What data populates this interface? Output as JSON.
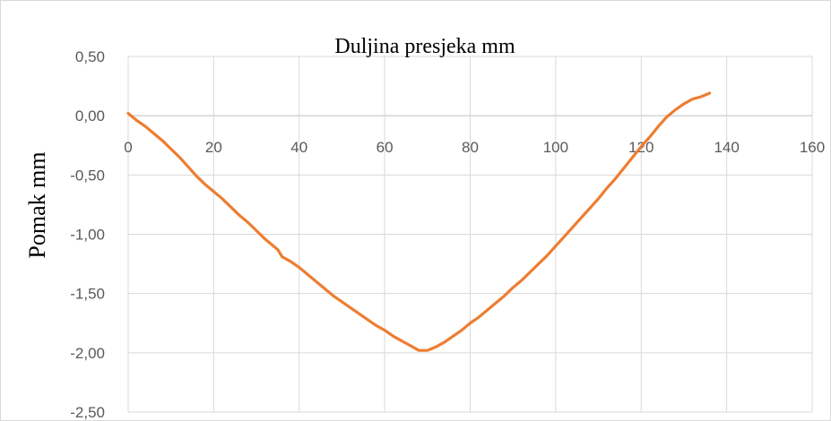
{
  "chart_data": {
    "type": "line",
    "title": "Duljina presjeka  mm",
    "xlabel": "",
    "ylabel": "Pomak  mm",
    "xlim": [
      0,
      160
    ],
    "ylim": [
      -2.5,
      0.5
    ],
    "x_ticks": [
      "0",
      "20",
      "40",
      "60",
      "80",
      "100",
      "120",
      "140",
      "160"
    ],
    "y_ticks": [
      "0,50",
      "0,00",
      "-0,50",
      "-1,00",
      "-1,50",
      "-2,00",
      "-2,50"
    ],
    "grid": true,
    "legend": "none",
    "series": [
      {
        "color": "#ED7D31",
        "x": [
          0,
          2,
          4,
          6,
          8,
          10,
          12,
          14,
          16,
          18,
          20,
          22,
          24,
          26,
          28,
          30,
          32,
          34,
          35,
          36,
          38,
          40,
          42,
          44,
          46,
          48,
          50,
          52,
          54,
          56,
          58,
          60,
          62,
          64,
          66,
          68,
          70,
          72,
          74,
          76,
          78,
          80,
          82,
          84,
          86,
          88,
          90,
          92,
          94,
          96,
          98,
          100,
          102,
          104,
          106,
          108,
          110,
          112,
          114,
          116,
          118,
          120,
          122,
          124,
          126,
          128,
          130,
          132,
          134,
          136
        ],
        "y": [
          0.02,
          -0.04,
          -0.09,
          -0.15,
          -0.21,
          -0.28,
          -0.35,
          -0.43,
          -0.51,
          -0.58,
          -0.64,
          -0.7,
          -0.77,
          -0.84,
          -0.9,
          -0.97,
          -1.04,
          -1.1,
          -1.13,
          -1.19,
          -1.23,
          -1.28,
          -1.34,
          -1.4,
          -1.46,
          -1.52,
          -1.57,
          -1.62,
          -1.67,
          -1.72,
          -1.77,
          -1.81,
          -1.86,
          -1.9,
          -1.94,
          -1.98,
          -1.98,
          -1.95,
          -1.91,
          -1.86,
          -1.81,
          -1.75,
          -1.7,
          -1.64,
          -1.58,
          -1.52,
          -1.45,
          -1.39,
          -1.32,
          -1.25,
          -1.18,
          -1.1,
          -1.02,
          -0.94,
          -0.86,
          -0.78,
          -0.7,
          -0.61,
          -0.53,
          -0.44,
          -0.35,
          -0.26,
          -0.18,
          -0.09,
          -0.01,
          0.05,
          0.1,
          0.14,
          0.16,
          0.19
        ]
      }
    ]
  }
}
